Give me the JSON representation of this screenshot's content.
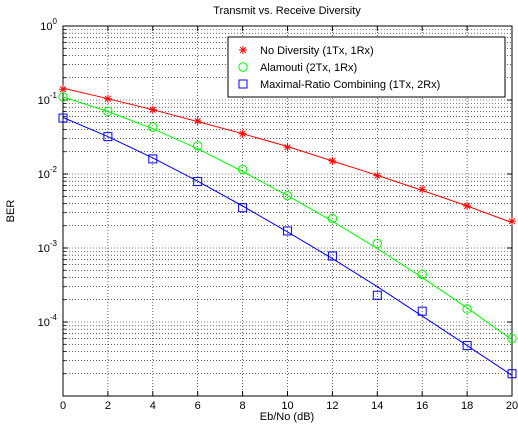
{
  "chart_data": {
    "type": "line",
    "title": "Transmit vs. Receive Diversity",
    "xlabel": "Eb/No (dB)",
    "ylabel": "BER",
    "xlim": [
      0,
      20
    ],
    "ylim": [
      1e-05,
      1
    ],
    "y_scale": "log",
    "grid": true,
    "legend_position": "top-right",
    "x_ticks": [
      "0",
      "2",
      "4",
      "6",
      "8",
      "10",
      "12",
      "14",
      "16",
      "18",
      "20"
    ],
    "y_tick_labels": [
      {
        "base": "10",
        "exp": "0"
      },
      {
        "base": "10",
        "exp": "-1"
      },
      {
        "base": "10",
        "exp": "-2"
      },
      {
        "base": "10",
        "exp": "-3"
      },
      {
        "base": "10",
        "exp": "-4"
      }
    ],
    "series": [
      {
        "name": "No Diversity (1Tx, 1Rx)",
        "color": "#ff0000",
        "marker": "asterisk",
        "x": [
          0,
          2,
          4,
          6,
          8,
          10,
          12,
          14,
          16,
          18,
          20
        ],
        "markers": [
          0.14,
          0.104,
          0.074,
          0.052,
          0.035,
          0.023,
          0.015,
          0.0095,
          0.0062,
          0.0037,
          0.0023
        ],
        "curve": [
          0.145,
          0.104,
          0.074,
          0.051,
          0.035,
          0.0235,
          0.015,
          0.0096,
          0.006,
          0.0037,
          0.0022
        ]
      },
      {
        "name": "Alamouti (2Tx, 1Rx)",
        "color": "#00ff00",
        "marker": "circle",
        "x": [
          0,
          2,
          4,
          6,
          8,
          10,
          12,
          14,
          16,
          18,
          20
        ],
        "markers": [
          0.11,
          0.07,
          0.043,
          0.024,
          0.0115,
          0.0051,
          0.0025,
          0.00115,
          0.00044,
          0.00015,
          6e-05
        ],
        "curve": [
          0.11,
          0.07,
          0.041,
          0.022,
          0.0108,
          0.0051,
          0.0023,
          0.00098,
          0.0004,
          0.000155,
          5.75e-05
        ]
      },
      {
        "name": "Maximal-Ratio Combining (1Tx, 2Rx)",
        "color": "#0000ff",
        "marker": "square",
        "x": [
          0,
          2,
          4,
          6,
          8,
          10,
          12,
          14,
          16,
          18,
          20
        ],
        "markers": [
          0.057,
          0.032,
          0.016,
          0.0079,
          0.0035,
          0.0017,
          0.00078,
          0.00023,
          0.00014,
          4.8e-05,
          2e-05
        ],
        "curve": [
          0.058,
          0.032,
          0.0165,
          0.008,
          0.0037,
          0.00165,
          0.00072,
          0.0003,
          0.00012,
          4.8e-05,
          1.9e-05
        ]
      }
    ]
  }
}
